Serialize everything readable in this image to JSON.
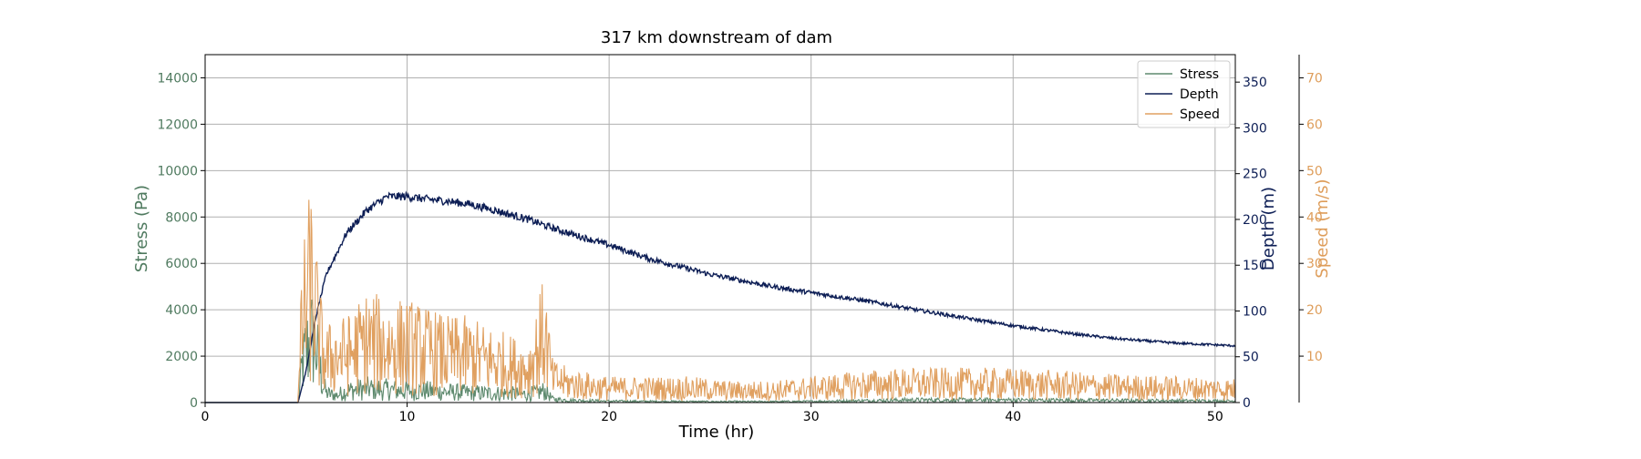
{
  "chart_data": {
    "type": "line",
    "title": "317 km downstream of dam",
    "xlabel": "Time (hr)",
    "xlim": [
      0,
      51
    ],
    "xticks": [
      0,
      10,
      20,
      30,
      40,
      50
    ],
    "grid": true,
    "legend_position": "top-right",
    "axes": {
      "stress": {
        "label": "Stress (Pa)",
        "color": "#4f7a5f",
        "ylim": [
          0,
          15000
        ],
        "ticks": [
          0,
          2000,
          4000,
          6000,
          8000,
          10000,
          12000,
          14000
        ]
      },
      "depth": {
        "label": "Depth (m)",
        "color": "#0d1e55",
        "ylim": [
          0,
          380
        ],
        "ticks": [
          0,
          50,
          100,
          150,
          200,
          250,
          300,
          350
        ]
      },
      "speed": {
        "label": "Speed (m/s)",
        "color": "#de9d5a",
        "ylim": [
          0,
          75
        ],
        "ticks": [
          10,
          20,
          30,
          40,
          50,
          60,
          70
        ]
      }
    },
    "series": [
      {
        "name": "Stress",
        "axis": "stress",
        "color": "#5e8a6e",
        "x": [
          0,
          4.6,
          4.8,
          5.0,
          5.2,
          5.4,
          5.6,
          5.8,
          6.0,
          6.5,
          7,
          8,
          9,
          10,
          11,
          12,
          13,
          14,
          15,
          16,
          16.8,
          17.2,
          18,
          19,
          20,
          22,
          25,
          28,
          30,
          35,
          40,
          45,
          51
        ],
        "values": [
          0,
          0,
          1500,
          2200,
          2600,
          2800,
          1800,
          900,
          400,
          300,
          500,
          600,
          550,
          500,
          500,
          450,
          420,
          400,
          380,
          350,
          500,
          150,
          100,
          80,
          60,
          50,
          40,
          40,
          50,
          110,
          110,
          90,
          70
        ],
        "noise": 0.55
      },
      {
        "name": "Depth",
        "axis": "depth",
        "color": "#0d1e55",
        "x": [
          0,
          4.6,
          5.0,
          5.5,
          6,
          7,
          8,
          9,
          10,
          11,
          12,
          13,
          14,
          15,
          16,
          17,
          18,
          20,
          22,
          25,
          28,
          30,
          33,
          35,
          38,
          40,
          43,
          45,
          48,
          51
        ],
        "values": [
          0,
          0,
          35,
          95,
          140,
          185,
          210,
          225,
          225,
          222,
          220,
          217,
          212,
          206,
          200,
          192,
          185,
          172,
          157,
          140,
          127,
          120,
          110,
          102,
          91,
          84,
          75,
          70,
          65,
          62
        ],
        "noise": 0.02
      },
      {
        "name": "Speed",
        "axis": "speed",
        "color": "#e0a060",
        "x": [
          0,
          4.6,
          4.8,
          5.0,
          5.2,
          5.4,
          5.6,
          5.8,
          6.0,
          6.5,
          7,
          8,
          9,
          10,
          11,
          12,
          13,
          14,
          15,
          16,
          16.8,
          17.2,
          18,
          19,
          20,
          22,
          24,
          26,
          28,
          30,
          33,
          35,
          38,
          40,
          45,
          51
        ],
        "values": [
          0,
          0,
          17,
          21,
          25,
          22,
          15,
          11,
          9,
          10,
          10,
          13,
          12,
          12,
          11,
          10,
          10,
          9,
          8,
          7,
          15,
          5,
          4,
          3.5,
          3,
          3,
          3,
          2.5,
          2.5,
          3,
          3.8,
          4,
          4,
          4,
          3.3,
          2.8
        ],
        "noise": 0.55
      }
    ]
  }
}
